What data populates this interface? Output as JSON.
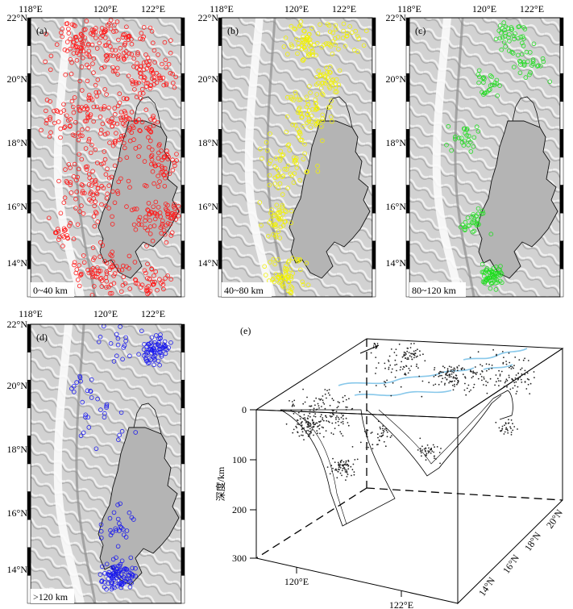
{
  "maps": [
    {
      "id": "a",
      "panel_label": "(a)",
      "depth_label": "0~40 km",
      "quake_color": "#ff1a1a",
      "lon_ticks": [
        "118°E",
        "120°E",
        "122°E"
      ],
      "lat_ticks": [
        "22°N",
        "20°N",
        "18°N",
        "16°N",
        "14°N"
      ]
    },
    {
      "id": "b",
      "panel_label": "(b)",
      "depth_label": "40~80 km",
      "quake_color": "#f2f200",
      "lon_ticks": [
        "118°E",
        "120°E",
        "122°E"
      ],
      "lat_ticks": [
        "22°N",
        "20°N",
        "18°N",
        "16°N",
        "14°N"
      ]
    },
    {
      "id": "c",
      "panel_label": "(c)",
      "depth_label": "80~120 km",
      "quake_color": "#22dd22",
      "lon_ticks": [
        "118°E",
        "120°E",
        "122°E"
      ],
      "lat_ticks": [
        "22°N",
        "20°N",
        "18°N",
        "16°N",
        "14°N"
      ]
    },
    {
      "id": "d",
      "panel_label": "(d)",
      "depth_label": ">120 km",
      "quake_color": "#1a1aee",
      "lon_ticks": [
        "118°E",
        "120°E",
        "122°E"
      ],
      "lat_ticks": [
        "22°N",
        "20°N",
        "18°N",
        "16°N",
        "14°N"
      ]
    }
  ],
  "block": {
    "panel_label": "(e)",
    "north_label": "N",
    "depth_axis_label": "深度/km",
    "depth_ticks": [
      "0",
      "100",
      "200",
      "300"
    ],
    "lon_ticks": [
      "120°E",
      "122°E"
    ],
    "lat_ticks": [
      "14°N",
      "16°N",
      "18°N",
      "20°N"
    ],
    "point_color": "#222222",
    "coast_color": "#88c8ea"
  }
}
